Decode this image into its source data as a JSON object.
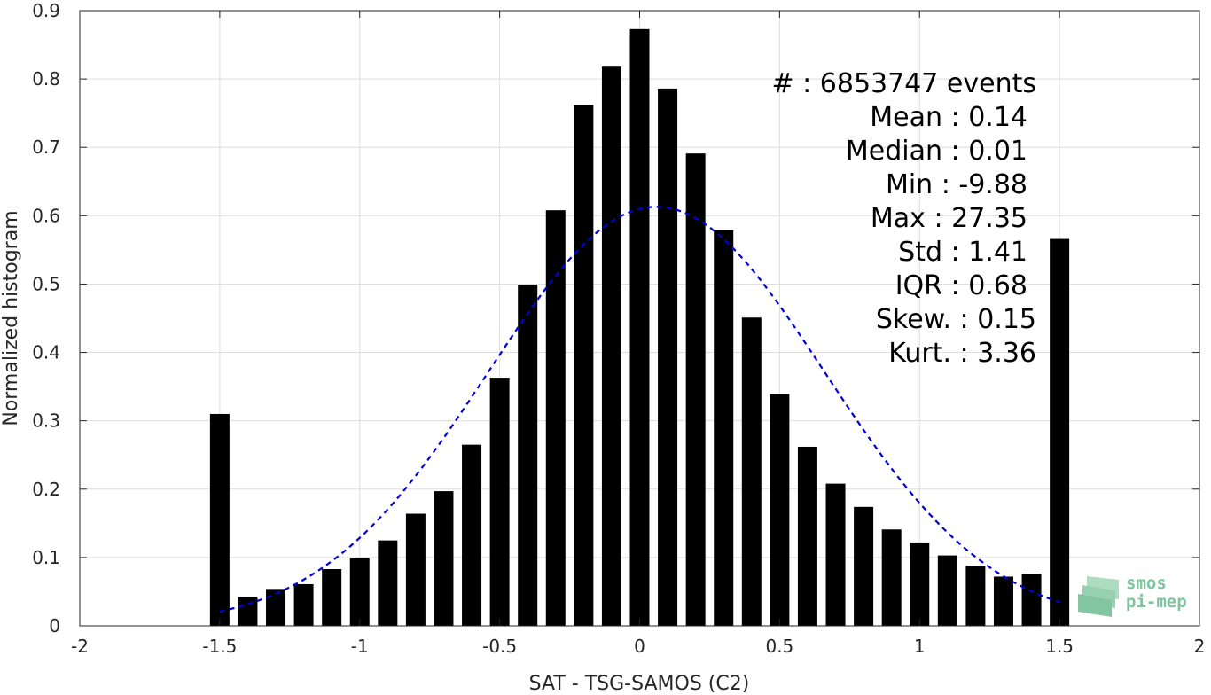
{
  "chart_data": {
    "type": "bar",
    "xlabel": "SAT - TSG-SAMOS (C2)",
    "ylabel": "Normalized histogram",
    "xlim": [
      -2,
      2
    ],
    "ylim": [
      0,
      0.9
    ],
    "xticks": [
      -2,
      -1.5,
      -1,
      -0.5,
      0,
      0.5,
      1,
      1.5,
      2
    ],
    "xtick_labels": [
      "-2",
      "-1.5",
      "-1",
      "-0.5",
      "0",
      "0.5",
      "1",
      "1.5",
      "2"
    ],
    "yticks": [
      0,
      0.1,
      0.2,
      0.3,
      0.4,
      0.5,
      0.6,
      0.7,
      0.8,
      0.9
    ],
    "ytick_labels": [
      "0",
      "0.1",
      "0.2",
      "0.3",
      "0.4",
      "0.5",
      "0.6",
      "0.7",
      "0.8",
      "0.9"
    ],
    "grid": true,
    "bar_color": "#000000",
    "bars": {
      "x": [
        -1.5,
        -1.4,
        -1.3,
        -1.2,
        -1.1,
        -1.0,
        -0.9,
        -0.8,
        -0.7,
        -0.6,
        -0.5,
        -0.4,
        -0.3,
        -0.2,
        -0.1,
        0.0,
        0.1,
        0.2,
        0.3,
        0.4,
        0.5,
        0.6,
        0.7,
        0.8,
        0.9,
        1.0,
        1.1,
        1.2,
        1.3,
        1.4,
        1.5
      ],
      "values": [
        0.31,
        0.042,
        0.054,
        0.061,
        0.083,
        0.099,
        0.125,
        0.164,
        0.197,
        0.265,
        0.363,
        0.499,
        0.608,
        0.762,
        0.818,
        0.873,
        0.786,
        0.691,
        0.579,
        0.451,
        0.339,
        0.262,
        0.208,
        0.174,
        0.141,
        0.122,
        0.103,
        0.088,
        0.072,
        0.076,
        0.566
      ]
    },
    "fit_curve": {
      "type": "gaussian",
      "color": "#0000dd",
      "style": "dashed",
      "x_range": [
        -1.5,
        1.5
      ],
      "peak": 0.613,
      "mean": 0.06,
      "sigma": 0.6
    },
    "stats_labels": [
      "#  : 6853747 events",
      "Mean : 0.14",
      "Median : 0.01",
      "Min : -9.88",
      "Max : 27.35",
      "Std : 1.41",
      "IQR : 0.68",
      "Skew. : 0.15",
      "Kurt. : 3.36"
    ]
  },
  "logo": {
    "line1": "smos",
    "line2": "pi-mep",
    "color": "#7fc4a0"
  }
}
